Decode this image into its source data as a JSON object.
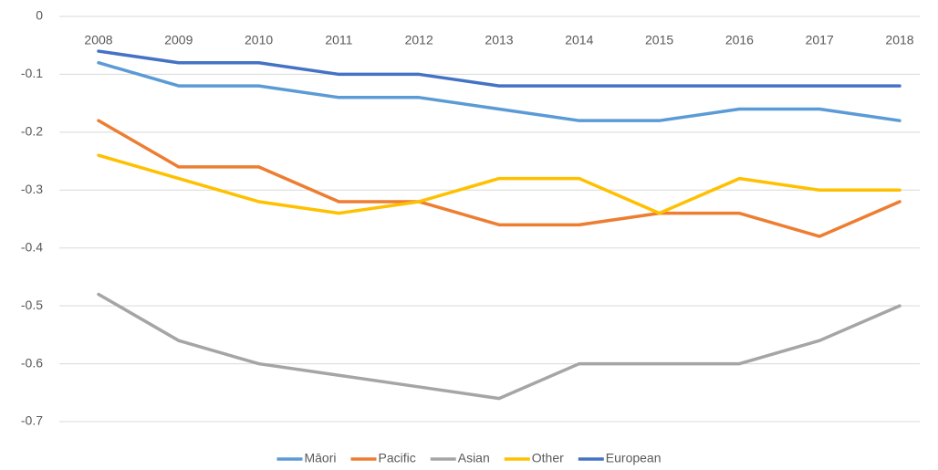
{
  "chart_data": {
    "type": "line",
    "categories": [
      "2008",
      "2009",
      "2010",
      "2011",
      "2012",
      "2013",
      "2014",
      "2015",
      "2016",
      "2017",
      "2018"
    ],
    "series": [
      {
        "name": "Māori",
        "color": "#5b9bd5",
        "values": [
          -0.08,
          -0.12,
          -0.12,
          -0.14,
          -0.14,
          -0.16,
          -0.18,
          -0.18,
          -0.16,
          -0.16,
          -0.18
        ]
      },
      {
        "name": "Pacific",
        "color": "#ed7d31",
        "values": [
          -0.18,
          -0.26,
          -0.26,
          -0.32,
          -0.32,
          -0.36,
          -0.36,
          -0.34,
          -0.34,
          -0.38,
          -0.32
        ]
      },
      {
        "name": "Asian",
        "color": "#a5a5a5",
        "values": [
          -0.48,
          -0.56,
          -0.6,
          -0.62,
          -0.64,
          -0.66,
          -0.6,
          -0.6,
          -0.6,
          -0.56,
          -0.5
        ]
      },
      {
        "name": "Other",
        "color": "#ffc000",
        "values": [
          -0.24,
          -0.28,
          -0.32,
          -0.34,
          -0.32,
          -0.28,
          -0.28,
          -0.34,
          -0.28,
          -0.3,
          -0.3
        ]
      },
      {
        "name": "European",
        "color": "#4472c4",
        "values": [
          -0.06,
          -0.08,
          -0.08,
          -0.1,
          -0.1,
          -0.12,
          -0.12,
          -0.12,
          -0.12,
          -0.12,
          -0.12
        ]
      }
    ],
    "ylim": [
      -0.7,
      0
    ],
    "yticks": [
      0,
      -0.1,
      -0.2,
      -0.3,
      -0.4,
      -0.5,
      -0.6,
      -0.7
    ],
    "grid": true,
    "legend": "bottom"
  }
}
